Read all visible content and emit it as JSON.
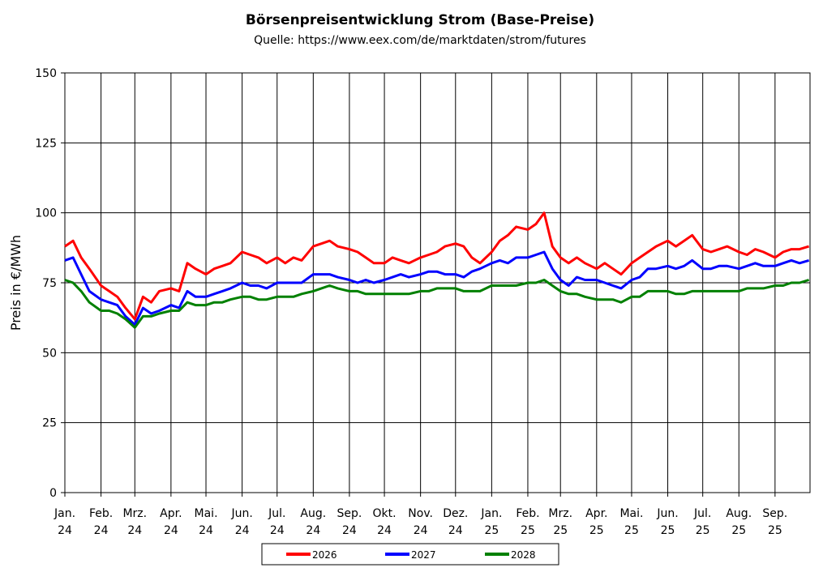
{
  "chart_data": {
    "type": "line",
    "title": "Börsenpreisentwicklung Strom (Base-Preise)",
    "subtitle": "Quelle:  https://www.eex.com/de/marktdaten/strom/futures",
    "ylabel": "Preis in €/MWh",
    "xlabel": "",
    "ylim": [
      0,
      150
    ],
    "yticks": [
      0,
      25,
      50,
      75,
      100,
      125,
      150
    ],
    "grid": true,
    "legend_position": "bottom",
    "months": [
      {
        "name": "Jan.",
        "year": "24"
      },
      {
        "name": "Feb.",
        "year": "24"
      },
      {
        "name": "Mrz.",
        "year": "24"
      },
      {
        "name": "Apr.",
        "year": "24"
      },
      {
        "name": "Mai.",
        "year": "24"
      },
      {
        "name": "Jun.",
        "year": "24"
      },
      {
        "name": "Jul.",
        "year": "24"
      },
      {
        "name": "Aug.",
        "year": "24"
      },
      {
        "name": "Sep.",
        "year": "24"
      },
      {
        "name": "Okt.",
        "year": "24"
      },
      {
        "name": "Nov.",
        "year": "24"
      },
      {
        "name": "Dez.",
        "year": "24"
      },
      {
        "name": "Jan.",
        "year": "25"
      },
      {
        "name": "Feb.",
        "year": "25"
      },
      {
        "name": "Mrz.",
        "year": "25"
      },
      {
        "name": "Apr.",
        "year": "25"
      },
      {
        "name": "Mai.",
        "year": "25"
      },
      {
        "name": "Jun.",
        "year": "25"
      },
      {
        "name": "Jul.",
        "year": "25"
      },
      {
        "name": "Aug.",
        "year": "25"
      },
      {
        "name": "Sep.",
        "year": "25"
      }
    ],
    "x": [
      "2024-01-01",
      "2024-01-08",
      "2024-01-15",
      "2024-01-22",
      "2024-02-01",
      "2024-02-08",
      "2024-02-15",
      "2024-02-22",
      "2024-03-01",
      "2024-03-08",
      "2024-03-15",
      "2024-03-22",
      "2024-04-01",
      "2024-04-08",
      "2024-04-15",
      "2024-04-22",
      "2024-05-01",
      "2024-05-08",
      "2024-05-15",
      "2024-05-22",
      "2024-06-01",
      "2024-06-08",
      "2024-06-15",
      "2024-06-22",
      "2024-07-01",
      "2024-07-08",
      "2024-07-15",
      "2024-07-22",
      "2024-08-01",
      "2024-08-08",
      "2024-08-15",
      "2024-08-22",
      "2024-09-01",
      "2024-09-08",
      "2024-09-15",
      "2024-09-22",
      "2024-10-01",
      "2024-10-08",
      "2024-10-15",
      "2024-10-22",
      "2024-11-01",
      "2024-11-08",
      "2024-11-15",
      "2024-11-22",
      "2024-12-01",
      "2024-12-08",
      "2024-12-15",
      "2024-12-22",
      "2025-01-01",
      "2025-01-08",
      "2025-01-15",
      "2025-01-22",
      "2025-02-01",
      "2025-02-08",
      "2025-02-15",
      "2025-02-22",
      "2025-03-01",
      "2025-03-08",
      "2025-03-15",
      "2025-03-22",
      "2025-04-01",
      "2025-04-08",
      "2025-04-15",
      "2025-04-22",
      "2025-05-01",
      "2025-05-08",
      "2025-05-15",
      "2025-05-22",
      "2025-06-01",
      "2025-06-08",
      "2025-06-15",
      "2025-06-22",
      "2025-07-01",
      "2025-07-08",
      "2025-07-15",
      "2025-07-22",
      "2025-08-01",
      "2025-08-08",
      "2025-08-15",
      "2025-08-22",
      "2025-09-01",
      "2025-09-08",
      "2025-09-15",
      "2025-09-22",
      "2025-09-30"
    ],
    "series": [
      {
        "name": "2026",
        "color": "#ff0000",
        "values": [
          88,
          90,
          84,
          80,
          74,
          72,
          70,
          66,
          62,
          70,
          68,
          72,
          73,
          72,
          82,
          80,
          78,
          80,
          81,
          82,
          86,
          85,
          84,
          82,
          84,
          82,
          84,
          83,
          88,
          89,
          90,
          88,
          87,
          86,
          84,
          82,
          82,
          84,
          83,
          82,
          84,
          85,
          86,
          88,
          89,
          88,
          84,
          82,
          86,
          90,
          92,
          95,
          94,
          96,
          100,
          88,
          84,
          82,
          84,
          82,
          80,
          82,
          80,
          78,
          82,
          84,
          86,
          88,
          90,
          88,
          90,
          92,
          87,
          86,
          87,
          88,
          86,
          85,
          87,
          86,
          84,
          86,
          87,
          87,
          88
        ]
      },
      {
        "name": "2027",
        "color": "#0000ff",
        "values": [
          83,
          84,
          78,
          72,
          69,
          68,
          67,
          63,
          60,
          66,
          64,
          65,
          67,
          66,
          72,
          70,
          70,
          71,
          72,
          73,
          75,
          74,
          74,
          73,
          75,
          75,
          75,
          75,
          78,
          78,
          78,
          77,
          76,
          75,
          76,
          75,
          76,
          77,
          78,
          77,
          78,
          79,
          79,
          78,
          78,
          77,
          79,
          80,
          82,
          83,
          82,
          84,
          84,
          85,
          86,
          80,
          76,
          74,
          77,
          76,
          76,
          75,
          74,
          73,
          76,
          77,
          80,
          80,
          81,
          80,
          81,
          83,
          80,
          80,
          81,
          81,
          80,
          81,
          82,
          81,
          81,
          82,
          83,
          82,
          83
        ]
      },
      {
        "name": "2028",
        "color": "#008000",
        "values": [
          76,
          75,
          72,
          68,
          65,
          65,
          64,
          62,
          59,
          63,
          63,
          64,
          65,
          65,
          68,
          67,
          67,
          68,
          68,
          69,
          70,
          70,
          69,
          69,
          70,
          70,
          70,
          71,
          72,
          73,
          74,
          73,
          72,
          72,
          71,
          71,
          71,
          71,
          71,
          71,
          72,
          72,
          73,
          73,
          73,
          72,
          72,
          72,
          74,
          74,
          74,
          74,
          75,
          75,
          76,
          74,
          72,
          71,
          71,
          70,
          69,
          69,
          69,
          68,
          70,
          70,
          72,
          72,
          72,
          71,
          71,
          72,
          72,
          72,
          72,
          72,
          72,
          73,
          73,
          73,
          74,
          74,
          75,
          75,
          76
        ]
      }
    ]
  }
}
